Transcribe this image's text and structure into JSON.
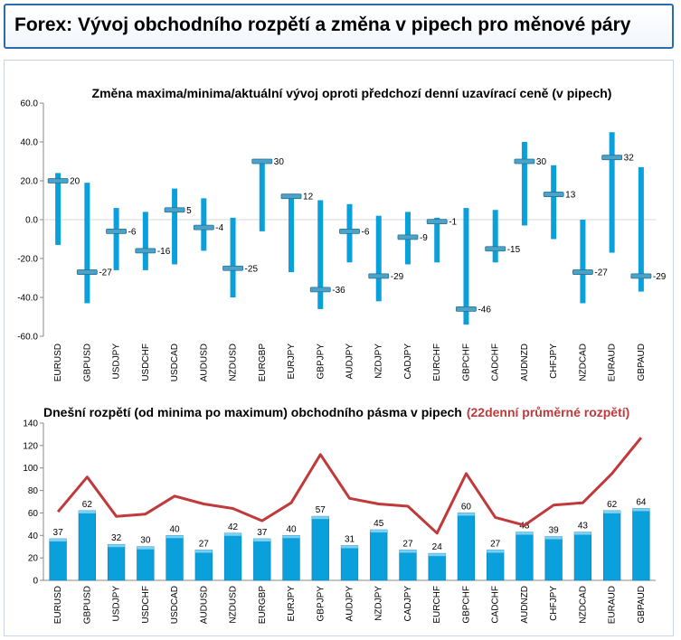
{
  "page": {
    "title": "Forex: Vývoj obchodního rozpětí a změna v pipech pro měnové páry"
  },
  "colors": {
    "header_border": "#2a6cb0",
    "bar": "#0aa0dc",
    "bar_dark": "#0b7fb3",
    "avg_line": "#c0393b",
    "close_marker": "#4aa3c9"
  },
  "chart_data": [
    {
      "type": "bar",
      "title": "Změna maxima/minima/aktuální vývoj oproti předchozí denní uzavírací ceně (v pipech)",
      "categories": [
        "EURUSD",
        "GBPUSD",
        "USDJPY",
        "USDCHF",
        "USDCAD",
        "AUDUSD",
        "NZDUSD",
        "EURGBP",
        "EURJPY",
        "GBPJPY",
        "AUDJPY",
        "NZDJPY",
        "CADJPY",
        "EURCHF",
        "GBPCHF",
        "CADCHF",
        "AUDNZD",
        "CHFJPY",
        "NZDCAD",
        "EURAUD",
        "GBPAUD"
      ],
      "series": [
        {
          "name": "",
          "values": [
            24,
            19,
            6,
            4,
            16,
            11,
            1,
            30,
            12,
            10,
            8,
            2,
            4,
            1,
            6,
            5,
            40,
            28,
            0,
            45,
            27
          ]
        },
        {
          "name": "",
          "values": [
            -13,
            -43,
            -26,
            -26,
            -23,
            -16,
            -40,
            -6,
            -27,
            -46,
            -22,
            -42,
            -23,
            -22,
            -54,
            -22,
            -3,
            -10,
            -43,
            -17,
            -37
          ]
        },
        {
          "name": "",
          "values": [
            20,
            -27,
            -6,
            -16,
            5,
            -4,
            -25,
            30,
            12,
            -36,
            -6,
            -29,
            -9,
            -1,
            -46,
            -15,
            30,
            13,
            -27,
            32,
            -29
          ]
        }
      ],
      "labels": [
        "20",
        "-27",
        "-6",
        "-16",
        "5",
        "-4",
        "-25",
        "30",
        "12",
        "-36",
        "-6",
        "-29",
        "-9",
        "-1",
        "-46",
        "-15",
        "30",
        "13",
        "-27",
        "32",
        "-29"
      ],
      "yticks": [
        "60.0",
        "40.0",
        "20.0",
        "0.0",
        "-20.0",
        "-40.0",
        "-60.0"
      ],
      "ylim": [
        -60,
        60
      ],
      "grid": false,
      "legend": "none"
    },
    {
      "type": "bar",
      "title": "Dnešní rozpětí (od minima po maximum) obchodního pásma v pipech",
      "title_highlight": "(22denní průměrné rozpětí)",
      "categories": [
        "EURUSD",
        "GBPUSD",
        "USDJPY",
        "USDCHF",
        "USDCAD",
        "AUDUSD",
        "NZDUSD",
        "EURGBP",
        "EURJPY",
        "GBPJPY",
        "AUDJPY",
        "NZDJPY",
        "CADJPY",
        "EURCHF",
        "GBPCHF",
        "CADCHF",
        "AUDNZD",
        "CHFJPY",
        "NZDCAD",
        "EURAUD",
        "GBPAUD"
      ],
      "series": [
        {
          "name": "Dnešní rozpětí (od minima po maximum) obchodního pásma v pipech",
          "type": "bar",
          "values": [
            37,
            62,
            32,
            30,
            40,
            27,
            42,
            37,
            40,
            57,
            31,
            45,
            27,
            24,
            60,
            27,
            43,
            39,
            43,
            62,
            64
          ]
        },
        {
          "name": "22denní průměrné rozpětí",
          "type": "line",
          "values": [
            61,
            92,
            57,
            59,
            75,
            68,
            64,
            53,
            69,
            112,
            73,
            68,
            66,
            42,
            95,
            56,
            49,
            67,
            69,
            95,
            127
          ]
        }
      ],
      "labels": [
        "37",
        "62",
        "32",
        "30",
        "40",
        "27",
        "42",
        "37",
        "40",
        "57",
        "31",
        "45",
        "27",
        "24",
        "60",
        "27",
        "43",
        "39",
        "43",
        "62",
        "64"
      ],
      "yticks": [
        "140",
        "120",
        "100",
        "80",
        "60",
        "40",
        "20",
        "0"
      ],
      "ylim": [
        0,
        140
      ],
      "grid": false,
      "legend": "none"
    }
  ]
}
